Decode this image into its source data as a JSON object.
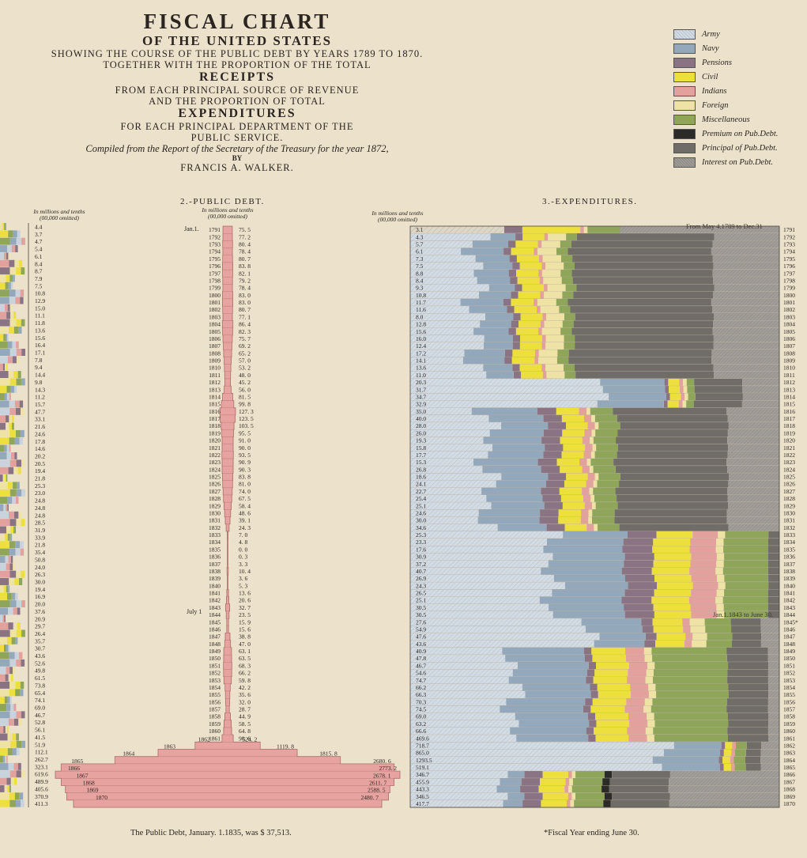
{
  "title": {
    "line1": "FISCAL CHART",
    "line2": "OF THE UNITED STATES",
    "line3": "SHOWING THE COURSE OF THE PUBLIC DEBT BY YEARS 1789 TO 1870.",
    "line4": "TOGETHER WITH THE PROPORTION OF THE TOTAL",
    "line5": "RECEIPTS",
    "line6": "FROM EACH PRINCIPAL SOURCE OF REVENUE",
    "line7": "AND THE PROPORTION OF TOTAL",
    "line8": "EXPENDITURES",
    "line9": "FOR EACH PRINCIPAL DEPARTMENT OF THE",
    "line10": "PUBLIC SERVICE.",
    "line11": "Compiled from the Report of the Secretary of the Treasury for the year 1872,",
    "line12": "BY",
    "line13": "FRANCIS A. WALKER."
  },
  "legend": [
    {
      "label": "Army",
      "color": "#c9d3dd",
      "hatch": "light"
    },
    {
      "label": "Navy",
      "color": "#94a8bb",
      "hatch": "none"
    },
    {
      "label": "Pensions",
      "color": "#8a7484",
      "hatch": "none"
    },
    {
      "label": "Civil",
      "color": "#ecdf3e",
      "hatch": "none"
    },
    {
      "label": "Indians",
      "color": "#e3a19d",
      "hatch": "none"
    },
    {
      "label": "Foreign",
      "color": "#eee3a4",
      "hatch": "none"
    },
    {
      "label": "Miscellaneous",
      "color": "#8ea55a",
      "hatch": "none"
    },
    {
      "label": "Premium on Pub.Debt.",
      "color": "#2d2b28",
      "hatch": "none"
    },
    {
      "label": "Principal of Pub.Debt.",
      "color": "#706c68",
      "hatch": "none"
    },
    {
      "label": "Interest on Pub.Debt.",
      "color": "#9a9692",
      "hatch": "dense"
    }
  ],
  "panels": {
    "debt_title": "2.-PUBLIC DEBT.",
    "debt_unit_1": "In millions and tenths",
    "debt_unit_2": "(00,000 omitted)",
    "exp_title": "3.-EXPENDITURES.",
    "exp_unit_1": "In millions and tenths",
    "exp_unit_2": "(00,000 omitted)",
    "receipts_unit_1": "In millions and tenths",
    "receipts_unit_2": "(00,000 omitted)"
  },
  "annotations": {
    "debt_jan": "Jan.1.",
    "debt_july": "July 1",
    "exp_first_period": "From May 4.1789 to Dec.31",
    "exp_half_year": "Jan.1.1843 to June 30.",
    "footer_debt": "The Public Debt, January. 1.1835, was $ 37,513.",
    "footer_fiscal": "*Fiscal Year ending June 30."
  },
  "chart_data": [
    {
      "type": "bar",
      "title": "2.-PUBLIC DEBT.",
      "ylabel": "In millions and tenths (00,000 omitted)",
      "categories": [
        "1791",
        "1792",
        "1793",
        "1794",
        "1795",
        "1796",
        "1797",
        "1798",
        "1799",
        "1800",
        "1801",
        "1802",
        "1803",
        "1804",
        "1805",
        "1806",
        "1807",
        "1808",
        "1809",
        "1810",
        "1811",
        "1812",
        "1813",
        "1814",
        "1815",
        "1816",
        "1817",
        "1818",
        "1819",
        "1820",
        "1821",
        "1822",
        "1823",
        "1824",
        "1825",
        "1826",
        "1827",
        "1828",
        "1829",
        "1830",
        "1831",
        "1832",
        "1833",
        "1834",
        "1835",
        "1836",
        "1837",
        "1838",
        "1839",
        "1840",
        "1841",
        "1842",
        "1843",
        "1844",
        "1845",
        "1846",
        "1847",
        "1848",
        "1849",
        "1850",
        "1851",
        "1852",
        "1853",
        "1854",
        "1855",
        "1856",
        "1857",
        "1858",
        "1859",
        "1860",
        "1861",
        "1862",
        "1863",
        "1864",
        "1865",
        "1866",
        "1867",
        "1868",
        "1869",
        "1870"
      ],
      "values": [
        "75. 5",
        "77. 2",
        "80. 4",
        "78. 4",
        "80. 7",
        "83. 8",
        "82. 1",
        "79. 2",
        "78. 4",
        "83. 0",
        "83. 0",
        "80. 7",
        "77. 1",
        "86. 4",
        "82. 3",
        "75. 7",
        "69. 2",
        "65. 2",
        "57. 0",
        "53. 2",
        "48. 0",
        "45. 2",
        "56. 0",
        "81. 5",
        "99. 8",
        "127. 3",
        "123. 5",
        "103. 5",
        "95. 5",
        "91. 0",
        "90. 0",
        "93. 5",
        "90. 9",
        "90. 3",
        "83. 8",
        "81. 0",
        "74. 0",
        "67. 5",
        "58. 4",
        "48. 6",
        "39. 1",
        "24. 3",
        "7. 0",
        "4. 8",
        "0. 0",
        "0. 3",
        "3. 3",
        "10. 4",
        "3. 6",
        "5. 3",
        "13. 6",
        "20. 6",
        "32. 7",
        "23. 5",
        "15. 9",
        "15. 6",
        "38. 8",
        "47. 0",
        "63. 1",
        "63. 5",
        "68. 3",
        "66. 2",
        "59. 8",
        "42. 2",
        "35. 6",
        "32. 0",
        "28. 7",
        "44. 9",
        "58. 5",
        "64. 8",
        "90. 6",
        "524. 2",
        "1119. 8",
        "1815. 8",
        "2680. 6",
        "2773. 2",
        "2678. 1",
        "2611. 7",
        "2588. 5",
        "2480. 7"
      ]
    },
    {
      "type": "bar",
      "title": "3.-EXPENDITURES.",
      "ylabel": "In millions and tenths (00,000 omitted)",
      "series_names": [
        "Army",
        "Navy",
        "Pensions",
        "Civil",
        "Indians",
        "Foreign",
        "Miscellaneous",
        "Premium on Pub.Debt.",
        "Principal of Pub.Debt.",
        "Interest on Pub.Debt."
      ],
      "categories": [
        "1791",
        "1792",
        "1793",
        "1794",
        "1795",
        "1796",
        "1797",
        "1798",
        "1799",
        "1800",
        "1801",
        "1802",
        "1803",
        "1804",
        "1805",
        "1806",
        "1807",
        "1808",
        "1809",
        "1810",
        "1811",
        "1812",
        "1813",
        "1814",
        "1815",
        "1816",
        "1817",
        "1818",
        "1819",
        "1820",
        "1821",
        "1822",
        "1823",
        "1824",
        "1825",
        "1826",
        "1827",
        "1828",
        "1829",
        "1830",
        "1831",
        "1832",
        "1833",
        "1834",
        "1835",
        "1836",
        "1837",
        "1838",
        "1839",
        "1840",
        "1841",
        "1842",
        "1843",
        "1844",
        "1845*",
        "1846",
        "1847",
        "1848",
        "1849",
        "1850",
        "1851",
        "1852",
        "1853",
        "1854",
        "1855",
        "1856",
        "1857",
        "1858",
        "1859",
        "1860",
        "1861",
        "1862",
        "1863",
        "1864",
        "1865",
        "1866",
        "1867",
        "1868",
        "1869",
        "1870"
      ],
      "totals": [
        "3.1",
        "4.3",
        "5.7",
        "6.1",
        "7.3",
        "7.5",
        "8.8",
        "8.4",
        "9.3",
        "10.8",
        "11.7",
        "11.6",
        "8.0",
        "12.8",
        "15.6",
        "16.0",
        "12.4",
        "17.2",
        "14.1",
        "13.6",
        "11.0",
        "20.3",
        "31.7",
        "34.7",
        "32.9",
        "35.0",
        "40.0",
        "28.0",
        "26.0",
        "19.3",
        "15.8",
        "17.7",
        "15.3",
        "26.8",
        "18.6",
        "24.1",
        "22.7",
        "25.4",
        "25.1",
        "24.6",
        "30.0",
        "34.6",
        "25.3",
        "23.3",
        "17.6",
        "30.9",
        "37.2",
        "40.7",
        "26.9",
        "24.3",
        "26.5",
        "25.1",
        "30.5",
        "30.5",
        "27.6",
        "54.9",
        "47.6",
        "43.6",
        "40.9",
        "47.8",
        "46.7",
        "54.6",
        "74.7",
        "66.2",
        "66.3",
        "70.3",
        "74.5",
        "69.0",
        "63.2",
        "66.6",
        "469.6",
        "718.7",
        "865.0",
        "1293.5",
        "519.1",
        "346.7",
        "455.9",
        "443.3",
        "346.5",
        "417.7"
      ]
    },
    {
      "type": "bar",
      "title": "",
      "ylabel": "In millions and tenths (00,000 omitted)",
      "values_visible": [
        "4.4",
        "3.7",
        "4.7",
        "5.4",
        "6.1",
        "8.4",
        "8.7",
        "7.9",
        "7.5",
        "10.8",
        "12.9",
        "15.0",
        "11.1",
        "11.8",
        "13.6",
        "15.6",
        "16.4",
        "17.1",
        "7.8",
        "9.4",
        "14.4",
        "9.8",
        "14.3",
        "11.2",
        "15.7",
        "47.7",
        "33.1",
        "21.6",
        "24.6",
        "17.8",
        "14.6",
        "20.2",
        "20.5",
        "19.4",
        "21.8",
        "25.3",
        "23.0",
        "24.8",
        "24.8",
        "24.8",
        "28.5",
        "31.9",
        "33.9",
        "21.8",
        "35.4",
        "50.8",
        "24.0",
        "26.3",
        "30.0",
        "19.4",
        "16.9",
        "20.0",
        "37.6",
        "20.9",
        "29.7",
        "26.4",
        "35.7",
        "30.7",
        "43.6",
        "52.6",
        "49.8",
        "61.5",
        "73.8",
        "65.4",
        "74.1",
        "69.0",
        "46.7",
        "52.8",
        "56.1",
        "41.5",
        "51.9",
        "112.1",
        "262.7",
        "323.1",
        "619.6",
        "489.9",
        "405.6",
        "370.9",
        "411.3"
      ]
    }
  ]
}
